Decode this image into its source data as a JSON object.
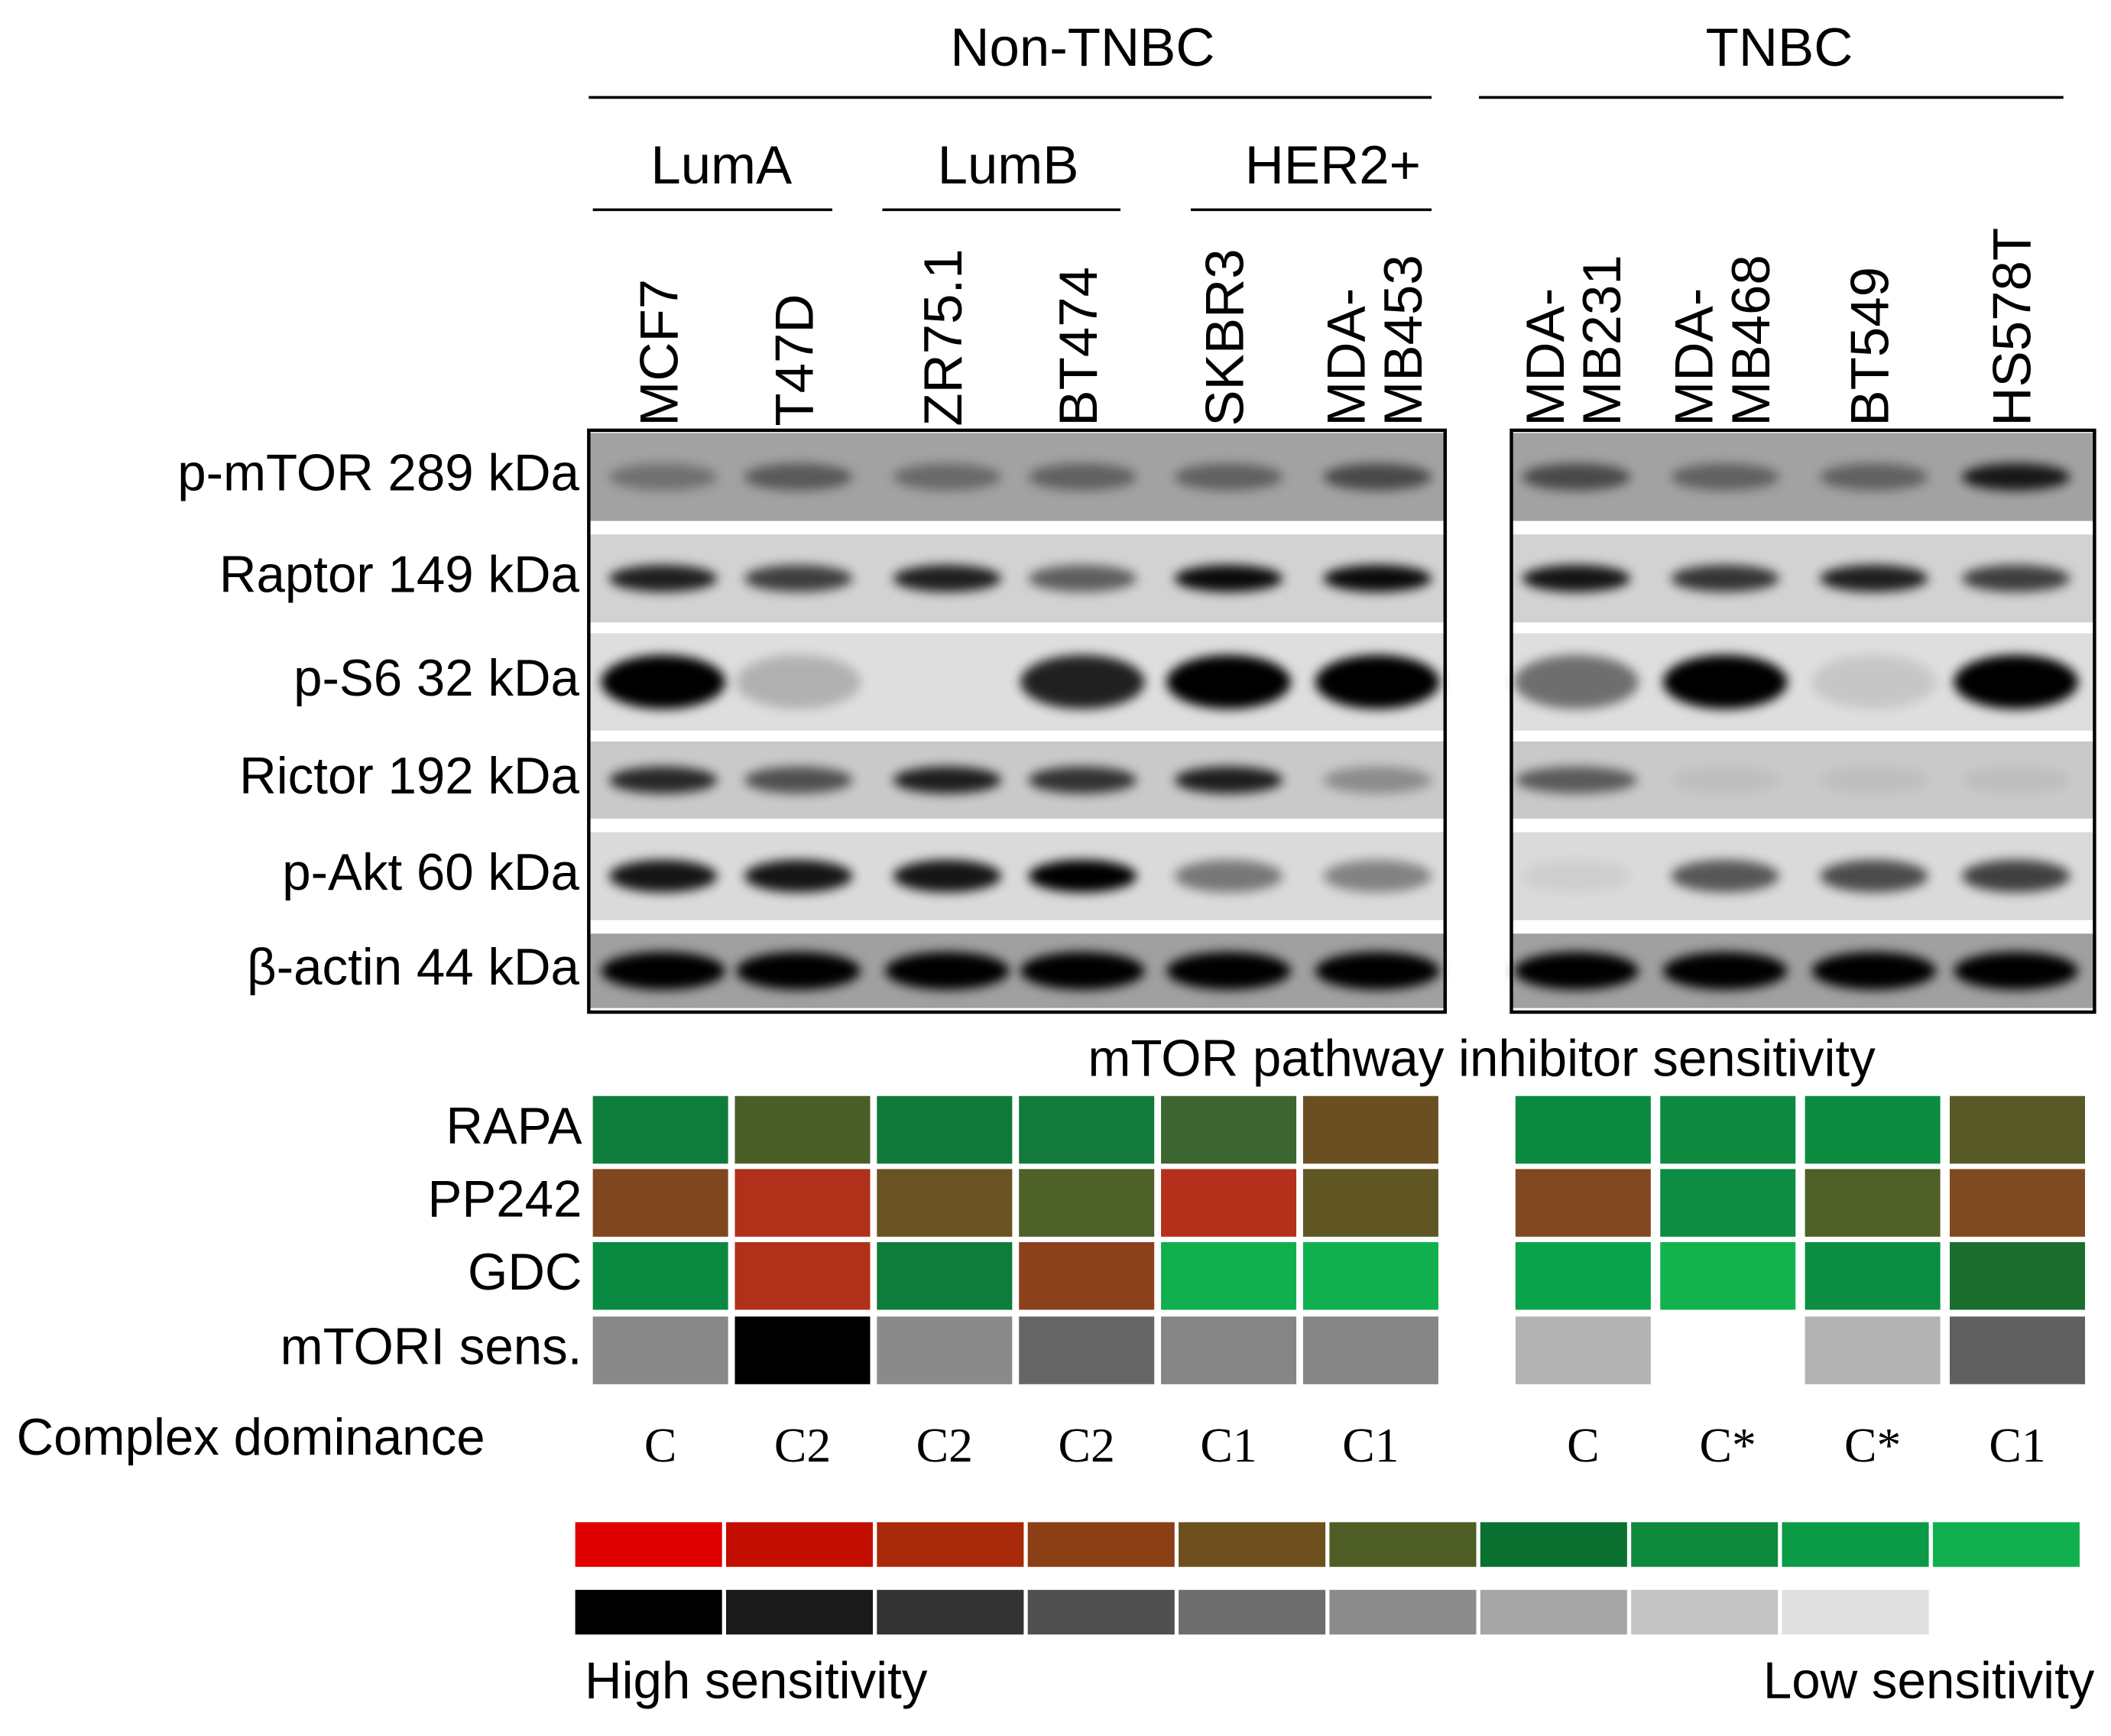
{
  "groups": [
    "Non-TNBC",
    "TNBC"
  ],
  "subtypes": [
    "LumA",
    "LumB",
    "HER2+"
  ],
  "cell_lines": [
    [
      "MCF7"
    ],
    [
      "T47D"
    ],
    [
      "ZR75.1"
    ],
    [
      "BT474"
    ],
    [
      "SKBR3"
    ],
    [
      "MDA-",
      "MB453"
    ],
    [
      "MDA-",
      "MB231"
    ],
    [
      "MDA-",
      "MB468"
    ],
    [
      "BT549"
    ],
    [
      "HS578T"
    ]
  ],
  "blots": [
    "p-mTOR 289 kDa",
    "Raptor 149 kDa",
    "p-S6 32 kDa",
    "Rictor 192 kDa",
    "p-Akt 60 kDa",
    "β-actin 44 kDa"
  ],
  "heatmap": {
    "title": "mTOR pathway inhibitor sensitivity",
    "rows": [
      {
        "label": "RAPA",
        "colors": [
          "#0e7c3a",
          "#4a5e28",
          "#0f7a39",
          "#127a3a",
          "#3d6530",
          "#6a4f22",
          "#0a8a40",
          "#0d8a40",
          "#0b8c40",
          "#575a26"
        ]
      },
      {
        "label": "PP242",
        "colors": [
          "#7f4620",
          "#b0301a",
          "#6a5222",
          "#4d6128",
          "#b4301b",
          "#5f5624",
          "#7f4820",
          "#0c8d42",
          "#4f6026",
          "#804a20"
        ]
      },
      {
        "label": "GDC",
        "colors": [
          "#0a8a40",
          "#b0301a",
          "#0e7c3a",
          "#8b421c",
          "#10b04e",
          "#10b04e",
          "#0aa24a",
          "#12b24e",
          "#0c8e42",
          "#1c6e2f"
        ]
      },
      {
        "label": "mTORI sens.",
        "colors": [
          "#888888",
          "#000000",
          "#8a8a8a",
          "#666666",
          "#858585",
          "#858585",
          "#b3b3b3",
          null,
          "#b3b3b3",
          "#606060"
        ]
      }
    ]
  },
  "complex_dominance": {
    "label": "Complex dominance",
    "values": [
      "C",
      "C2",
      "C2",
      "C2",
      "C1",
      "C1",
      "C",
      "C*",
      "C*",
      "C1"
    ]
  },
  "legend": {
    "colors": [
      "#e00000",
      "#c40f00",
      "#a92a0a",
      "#8a3f14",
      "#6e4f1e",
      "#4f5e24",
      "#0a7030",
      "#0e8a3c",
      "#0b9a45",
      "#10b04e"
    ],
    "grays": [
      "#000000",
      "#1a1a1a",
      "#333333",
      "#505050",
      "#6e6e6e",
      "#8c8c8c",
      "#a6a6a6",
      "#c4c4c4",
      "#e0e0e0"
    ],
    "left_label": "High sensitivity",
    "right_label": "Low sensitivity"
  }
}
